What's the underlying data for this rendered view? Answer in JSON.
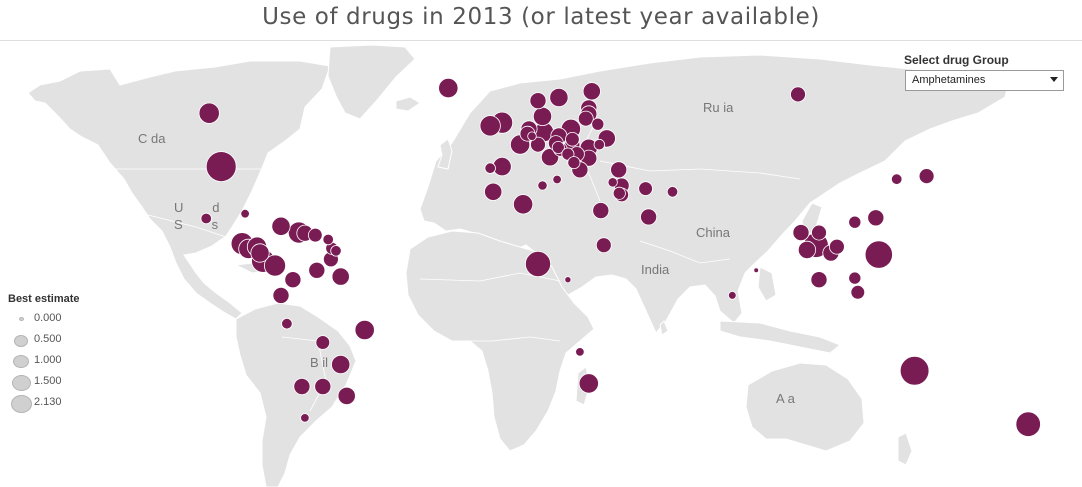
{
  "title": "Use of drugs in 2013 (or latest year available)",
  "filter": {
    "label": "Select drug Group",
    "selected": "Amphetamines"
  },
  "legend": {
    "title": "Best estimate",
    "items": [
      {
        "label": "0.000",
        "value": 0.0
      },
      {
        "label": "0.500",
        "value": 0.5
      },
      {
        "label": "1.000",
        "value": 1.0
      },
      {
        "label": "1.500",
        "value": 1.5
      },
      {
        "label": "2.130",
        "value": 2.13
      }
    ]
  },
  "country_labels": [
    {
      "id": "canada",
      "text": "C          da"
    },
    {
      "id": "united-states",
      "text": "U        d\nS        s"
    },
    {
      "id": "brazil",
      "text": "B        il"
    },
    {
      "id": "russia",
      "text": "Ru      ia"
    },
    {
      "id": "china",
      "text": "China"
    },
    {
      "id": "india",
      "text": "India"
    },
    {
      "id": "australia",
      "text": "A           a"
    }
  ],
  "colors": {
    "marker": "#7a1c54",
    "marker_stroke": "#ffffff",
    "land": "#e2e2e2",
    "legend_swatch": "#d0d0d0"
  },
  "chart_data": {
    "type": "scatter",
    "title": "Use of drugs in 2013 (or latest year available)",
    "measure": "Best estimate",
    "drug_group": "Amphetamines",
    "points": [
      {
        "lon": -102,
        "lat": 57,
        "value": 0.55
      },
      {
        "lon": -98,
        "lat": 40,
        "value": 1.2
      },
      {
        "lon": -22,
        "lat": 65,
        "value": 0.5
      },
      {
        "lon": -4,
        "lat": 54,
        "value": 0.6
      },
      {
        "lon": -8,
        "lat": 53,
        "value": 0.55
      },
      {
        "lon": 2,
        "lat": 47,
        "value": 0.5
      },
      {
        "lon": -4,
        "lat": 40,
        "value": 0.45
      },
      {
        "lon": -8,
        "lat": 39.5,
        "value": 0.15
      },
      {
        "lon": 10,
        "lat": 51,
        "value": 0.5
      },
      {
        "lon": 5,
        "lat": 52,
        "value": 0.35
      },
      {
        "lon": 4.5,
        "lat": 50.5,
        "value": 0.3
      },
      {
        "lon": 6,
        "lat": 49.7,
        "value": 0.1
      },
      {
        "lon": 8,
        "lat": 47,
        "value": 0.3
      },
      {
        "lon": 14,
        "lat": 47.5,
        "value": 0.3
      },
      {
        "lon": 12,
        "lat": 43,
        "value": 0.4
      },
      {
        "lon": 9.5,
        "lat": 56,
        "value": 0.45
      },
      {
        "lon": 15,
        "lat": 62,
        "value": 0.45
      },
      {
        "lon": 8,
        "lat": 61,
        "value": 0.35
      },
      {
        "lon": 26,
        "lat": 64,
        "value": 0.4
      },
      {
        "lon": 19,
        "lat": 52,
        "value": 0.5
      },
      {
        "lon": 15,
        "lat": 49.8,
        "value": 0.35
      },
      {
        "lon": 19.5,
        "lat": 48.7,
        "value": 0.25
      },
      {
        "lon": 19.5,
        "lat": 47,
        "value": 0.3
      },
      {
        "lon": 25,
        "lat": 58.7,
        "value": 0.35
      },
      {
        "lon": 25,
        "lat": 56.8,
        "value": 0.35
      },
      {
        "lon": 24,
        "lat": 55.3,
        "value": 0.3
      },
      {
        "lon": 28,
        "lat": 53.5,
        "value": 0.2
      },
      {
        "lon": 31,
        "lat": 49,
        "value": 0.4
      },
      {
        "lon": 25,
        "lat": 46,
        "value": 0.4
      },
      {
        "lon": 25,
        "lat": 42.7,
        "value": 0.35
      },
      {
        "lon": 21,
        "lat": 44,
        "value": 0.3
      },
      {
        "lon": 15.5,
        "lat": 45.5,
        "value": 0.25
      },
      {
        "lon": 14.8,
        "lat": 46.1,
        "value": 0.2
      },
      {
        "lon": 18,
        "lat": 44,
        "value": 0.2
      },
      {
        "lon": 20,
        "lat": 41.3,
        "value": 0.2
      },
      {
        "lon": 22,
        "lat": 39,
        "value": 0.35
      },
      {
        "lon": 28.5,
        "lat": 47,
        "value": 0.15
      },
      {
        "lon": 35,
        "lat": 39,
        "value": 0.35
      },
      {
        "lon": -7,
        "lat": 32,
        "value": 0.4
      },
      {
        "lon": 3,
        "lat": 28,
        "value": 0.5
      },
      {
        "lon": 9.5,
        "lat": 34,
        "value": 0.12
      },
      {
        "lon": 14.4,
        "lat": 35.9,
        "value": 0.1
      },
      {
        "lon": 33,
        "lat": 35,
        "value": 0.12
      },
      {
        "lon": 29,
        "lat": 26,
        "value": 0.35
      },
      {
        "lon": 30,
        "lat": 15,
        "value": 0.3
      },
      {
        "lon": 36,
        "lat": 34,
        "value": 0.3
      },
      {
        "lon": 35.2,
        "lat": 31.5,
        "value": 0.2
      },
      {
        "lon": 36,
        "lat": 31,
        "value": 0.25
      },
      {
        "lon": 44,
        "lat": 33,
        "value": 0.25
      },
      {
        "lon": 45,
        "lat": 24,
        "value": 0.35
      },
      {
        "lon": 53,
        "lat": 32,
        "value": 0.15
      },
      {
        "lon": 8,
        "lat": 9,
        "value": 0.85
      },
      {
        "lon": 18,
        "lat": 4,
        "value": 0.05
      },
      {
        "lon": 22,
        "lat": -19,
        "value": 0.1
      },
      {
        "lon": 25,
        "lat": -29,
        "value": 0.5
      },
      {
        "lon": 73,
        "lat": -1,
        "value": 0.08
      },
      {
        "lon": 81,
        "lat": 7,
        "value": 0.03
      },
      {
        "lon": 101,
        "lat": 15,
        "value": 0.8
      },
      {
        "lon": 96,
        "lat": 19,
        "value": 0.35
      },
      {
        "lon": 98,
        "lat": 13.5,
        "value": 0.4
      },
      {
        "lon": 102,
        "lat": 19,
        "value": 0.3
      },
      {
        "lon": 106,
        "lat": 12.5,
        "value": 0.35
      },
      {
        "lon": 108,
        "lat": 14.5,
        "value": 0.3
      },
      {
        "lon": 114,
        "lat": 22.3,
        "value": 0.2
      },
      {
        "lon": 121,
        "lat": 23.7,
        "value": 0.35
      },
      {
        "lon": 122,
        "lat": 12,
        "value": 1.0
      },
      {
        "lon": 102,
        "lat": 4,
        "value": 0.35
      },
      {
        "lon": 114,
        "lat": 4.5,
        "value": 0.2
      },
      {
        "lon": 115,
        "lat": 0,
        "value": 0.25
      },
      {
        "lon": 128,
        "lat": 36,
        "value": 0.15
      },
      {
        "lon": 138,
        "lat": 37,
        "value": 0.3
      },
      {
        "lon": 95,
        "lat": 63,
        "value": 0.3
      },
      {
        "lon": 134,
        "lat": -25,
        "value": 1.1
      },
      {
        "lon": 172,
        "lat": -42,
        "value": 0.8
      },
      {
        "lon": -90,
        "lat": 25,
        "value": 0.1
      },
      {
        "lon": -103,
        "lat": 23.5,
        "value": 0.15
      },
      {
        "lon": -91,
        "lat": 15.5,
        "value": 0.65
      },
      {
        "lon": -88.9,
        "lat": 13.8,
        "value": 0.5
      },
      {
        "lon": -86,
        "lat": 14.5,
        "value": 0.5
      },
      {
        "lon": -85,
        "lat": 12.5,
        "value": 0.45
      },
      {
        "lon": -84,
        "lat": 10,
        "value": 0.7
      },
      {
        "lon": -80,
        "lat": 8.5,
        "value": 0.6
      },
      {
        "lon": -78,
        "lat": 21,
        "value": 0.45
      },
      {
        "lon": -72,
        "lat": 19,
        "value": 0.6
      },
      {
        "lon": -70,
        "lat": 18.8,
        "value": 0.35
      },
      {
        "lon": -66.5,
        "lat": 18.2,
        "value": 0.25
      },
      {
        "lon": -61,
        "lat": 14,
        "value": 0.2
      },
      {
        "lon": -61.3,
        "lat": 10.5,
        "value": 0.3
      },
      {
        "lon": -59.6,
        "lat": 13.2,
        "value": 0.15
      },
      {
        "lon": -62.2,
        "lat": 16.8,
        "value": 0.15
      },
      {
        "lon": -74,
        "lat": 4,
        "value": 0.35
      },
      {
        "lon": -66,
        "lat": 7,
        "value": 0.35
      },
      {
        "lon": -58,
        "lat": 5,
        "value": 0.4
      },
      {
        "lon": -78,
        "lat": -1,
        "value": 0.35
      },
      {
        "lon": -76,
        "lat": -10,
        "value": 0.15
      },
      {
        "lon": -64,
        "lat": -16,
        "value": 0.25
      },
      {
        "lon": -50,
        "lat": -12,
        "value": 0.5
      },
      {
        "lon": -58,
        "lat": -23,
        "value": 0.45
      },
      {
        "lon": -64,
        "lat": -30,
        "value": 0.35
      },
      {
        "lon": -56,
        "lat": -33,
        "value": 0.4
      },
      {
        "lon": -71,
        "lat": -30,
        "value": 0.35
      },
      {
        "lon": -70,
        "lat": -40,
        "value": 0.1
      }
    ]
  }
}
